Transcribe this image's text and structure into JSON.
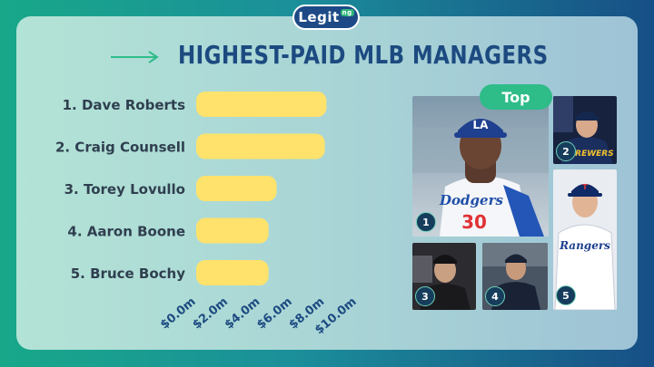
{
  "brand": {
    "logo_text": "Legit",
    "logo_suffix": "ng"
  },
  "colors": {
    "bar": "#ffe26b",
    "title": "#1c4a80",
    "label": "#2f3f4f",
    "accent": "#2ebc89"
  },
  "header": {
    "title": "HIGHEST-PAID MLB MANAGERS",
    "icon": "arrow-right-icon"
  },
  "top_label": "Top",
  "chart_data": {
    "type": "bar",
    "orientation": "horizontal",
    "categories": [
      "1. Dave Roberts",
      "2. Craig Counsell",
      "3. Torey Lovullo",
      "4. Aaron Boone",
      "5. Bruce Bochy"
    ],
    "values": [
      8.1,
      8.0,
      5.0,
      4.5,
      4.5
    ],
    "xlim": [
      0,
      10
    ],
    "xticks": [
      "$0.0m",
      "$2.0m",
      "$4.0m",
      "$6.0m",
      "$8.0m",
      "$10.0m"
    ],
    "grid": false
  },
  "photos": [
    {
      "rank": "1",
      "team_text": "Dodgers",
      "jersey": "30",
      "cap": "LA"
    },
    {
      "rank": "2",
      "team_text": "BREWERS"
    },
    {
      "rank": "3"
    },
    {
      "rank": "4"
    },
    {
      "rank": "5",
      "team_text": "Rangers",
      "cap": "T"
    }
  ]
}
